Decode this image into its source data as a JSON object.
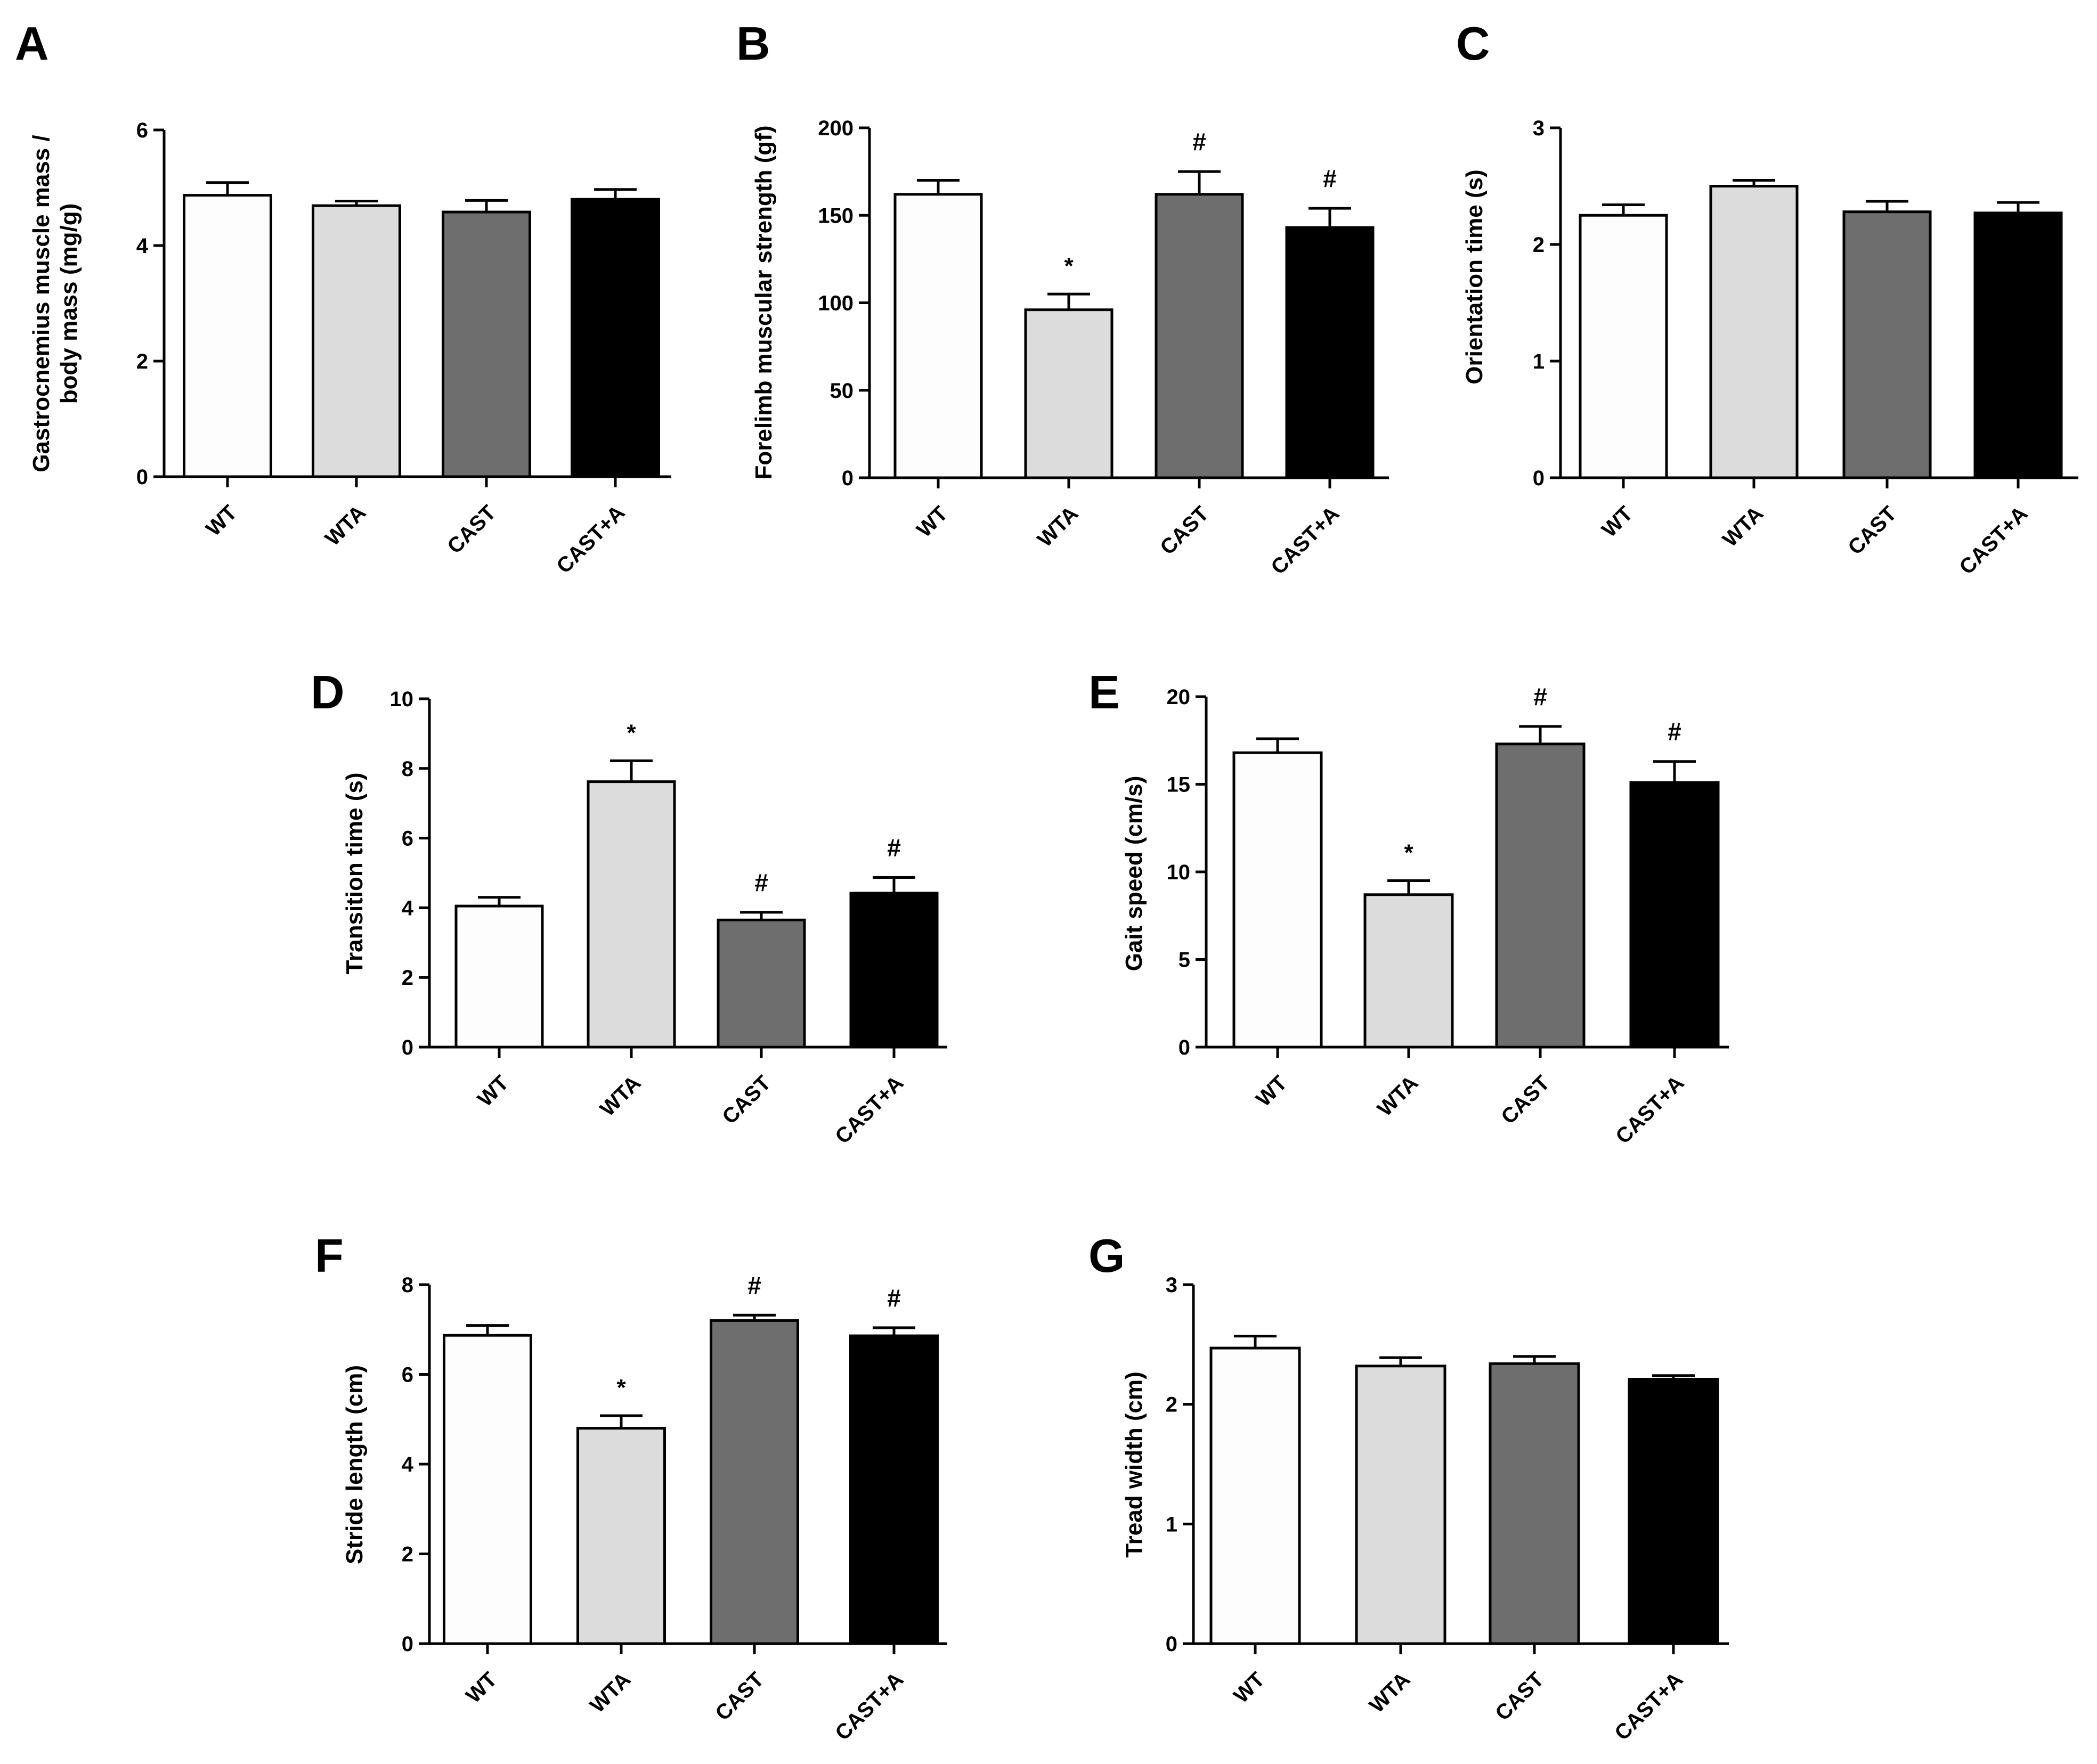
{
  "groups": [
    "WT",
    "WTA",
    "CAST",
    "CAST+A"
  ],
  "bar_colors": [
    "#fcfdfc",
    "#dcdcdc",
    "#6e6e6e",
    "#000000"
  ],
  "chart_data": [
    {
      "panel": "A",
      "type": "bar",
      "ylabel_lines": [
        "Gastrocnemius muscle mass /",
        "body mass (mg/g)"
      ],
      "ylim": [
        0,
        6
      ],
      "yticks": [
        0,
        2,
        4,
        6
      ],
      "categories": [
        "WT",
        "WTA",
        "CAST",
        "CAST+A"
      ],
      "values": [
        4.87,
        4.69,
        4.58,
        4.8
      ],
      "errors": [
        0.22,
        0.08,
        0.2,
        0.17
      ],
      "annotations": [
        "",
        "",
        "",
        ""
      ]
    },
    {
      "panel": "B",
      "type": "bar",
      "ylabel_lines": [
        "Forelimb muscular strength (gf)"
      ],
      "ylim": [
        0,
        200
      ],
      "yticks": [
        0,
        50,
        100,
        150,
        200
      ],
      "categories": [
        "WT",
        "WTA",
        "CAST",
        "CAST+A"
      ],
      "values": [
        162,
        96,
        162,
        143
      ],
      "errors": [
        8,
        9,
        13,
        11
      ],
      "annotations": [
        "",
        "*",
        "#",
        "#"
      ]
    },
    {
      "panel": "C",
      "type": "bar",
      "ylabel_lines": [
        "Orientation time (s)"
      ],
      "ylim": [
        0,
        3
      ],
      "yticks": [
        0,
        1,
        2,
        3
      ],
      "categories": [
        "WT",
        "WTA",
        "CAST",
        "CAST+A"
      ],
      "values": [
        2.25,
        2.5,
        2.28,
        2.27
      ],
      "errors": [
        0.09,
        0.05,
        0.09,
        0.09
      ],
      "annotations": [
        "",
        "",
        "",
        ""
      ]
    },
    {
      "panel": "D",
      "type": "bar",
      "ylabel_lines": [
        "Transition time (s)"
      ],
      "ylim": [
        0,
        10
      ],
      "yticks": [
        0,
        2,
        4,
        6,
        8,
        10
      ],
      "categories": [
        "WT",
        "WTA",
        "CAST",
        "CAST+A"
      ],
      "values": [
        4.05,
        7.62,
        3.65,
        4.42
      ],
      "errors": [
        0.25,
        0.6,
        0.22,
        0.45
      ],
      "annotations": [
        "",
        "*",
        "#",
        "#"
      ]
    },
    {
      "panel": "E",
      "type": "bar",
      "ylabel_lines": [
        "Gait speed (cm/s)"
      ],
      "ylim": [
        0,
        20
      ],
      "yticks": [
        0,
        5,
        10,
        15,
        20
      ],
      "categories": [
        "WT",
        "WTA",
        "CAST",
        "CAST+A"
      ],
      "values": [
        16.8,
        8.7,
        17.3,
        15.1
      ],
      "errors": [
        0.8,
        0.8,
        1.0,
        1.2
      ],
      "annotations": [
        "",
        "*",
        "#",
        "#"
      ]
    },
    {
      "panel": "F",
      "type": "bar",
      "ylabel_lines": [
        "Stride length (cm)"
      ],
      "ylim": [
        0,
        8
      ],
      "yticks": [
        0,
        2,
        4,
        6,
        8
      ],
      "categories": [
        "WT",
        "WTA",
        "CAST",
        "CAST+A"
      ],
      "values": [
        6.87,
        4.8,
        7.2,
        6.86
      ],
      "errors": [
        0.22,
        0.28,
        0.12,
        0.18
      ],
      "annotations": [
        "",
        "*",
        "#",
        "#"
      ]
    },
    {
      "panel": "G",
      "type": "bar",
      "ylabel_lines": [
        "Tread width (cm)"
      ],
      "ylim": [
        0,
        3
      ],
      "yticks": [
        0,
        1,
        2,
        3
      ],
      "categories": [
        "WT",
        "WTA",
        "CAST",
        "CAST+A"
      ],
      "values": [
        2.47,
        2.32,
        2.34,
        2.21
      ],
      "errors": [
        0.1,
        0.07,
        0.06,
        0.03
      ],
      "annotations": [
        "",
        "",
        "",
        ""
      ]
    }
  ]
}
